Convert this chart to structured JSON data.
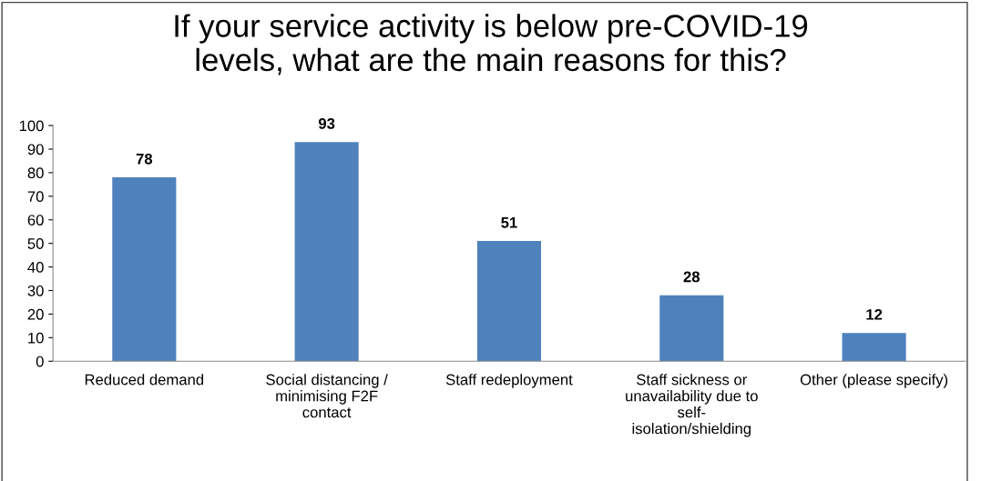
{
  "chart_data": {
    "type": "bar",
    "title": "If your service activity is below pre-COVID-19\nlevels, what are the main reasons for this?",
    "categories": [
      "Reduced demand",
      "Social distancing /\nminimising F2F\ncontact",
      "Staff redeployment",
      "Staff sickness or\nunavailability due to\nself-\nisolation/shielding",
      "Other (please specify)"
    ],
    "values": [
      78,
      93,
      51,
      28,
      12
    ],
    "color": "#4f81bd",
    "data_labels": true,
    "ylim": [
      0,
      100
    ],
    "yticks": [
      0,
      10,
      20,
      30,
      40,
      50,
      60,
      70,
      80,
      90,
      100
    ],
    "grid": false,
    "legend": false
  }
}
